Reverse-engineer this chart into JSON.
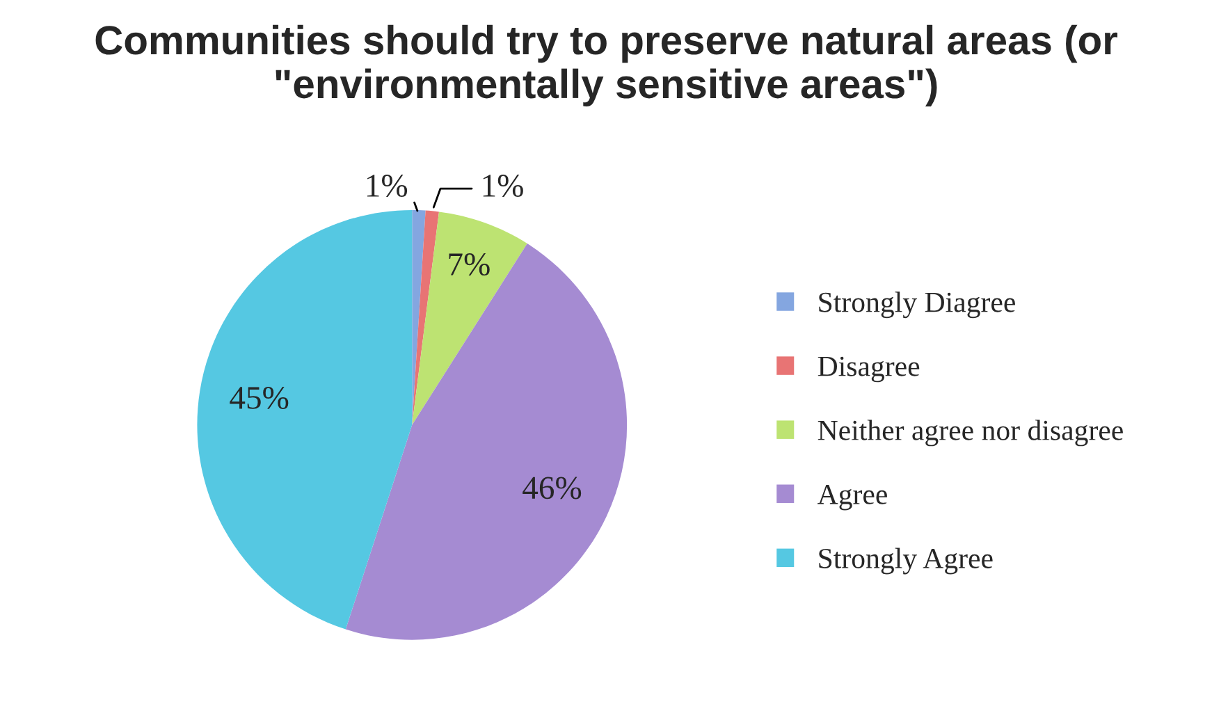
{
  "chart_data": {
    "type": "pie",
    "title": "Communities should try to preserve natural areas (or \"environmentally sensitive areas\")",
    "categories": [
      "Strongly Diagree",
      "Disagree",
      "Neither agree nor disagree",
      "Agree",
      "Strongly Agree"
    ],
    "values": [
      1,
      1,
      7,
      46,
      45
    ],
    "colors": [
      "#84a6e0",
      "#e87474",
      "#bde372",
      "#a58bd2",
      "#55c8e2"
    ],
    "value_labels": [
      "1%",
      "1%",
      "7%",
      "46%",
      "45%"
    ],
    "legend": "right"
  }
}
